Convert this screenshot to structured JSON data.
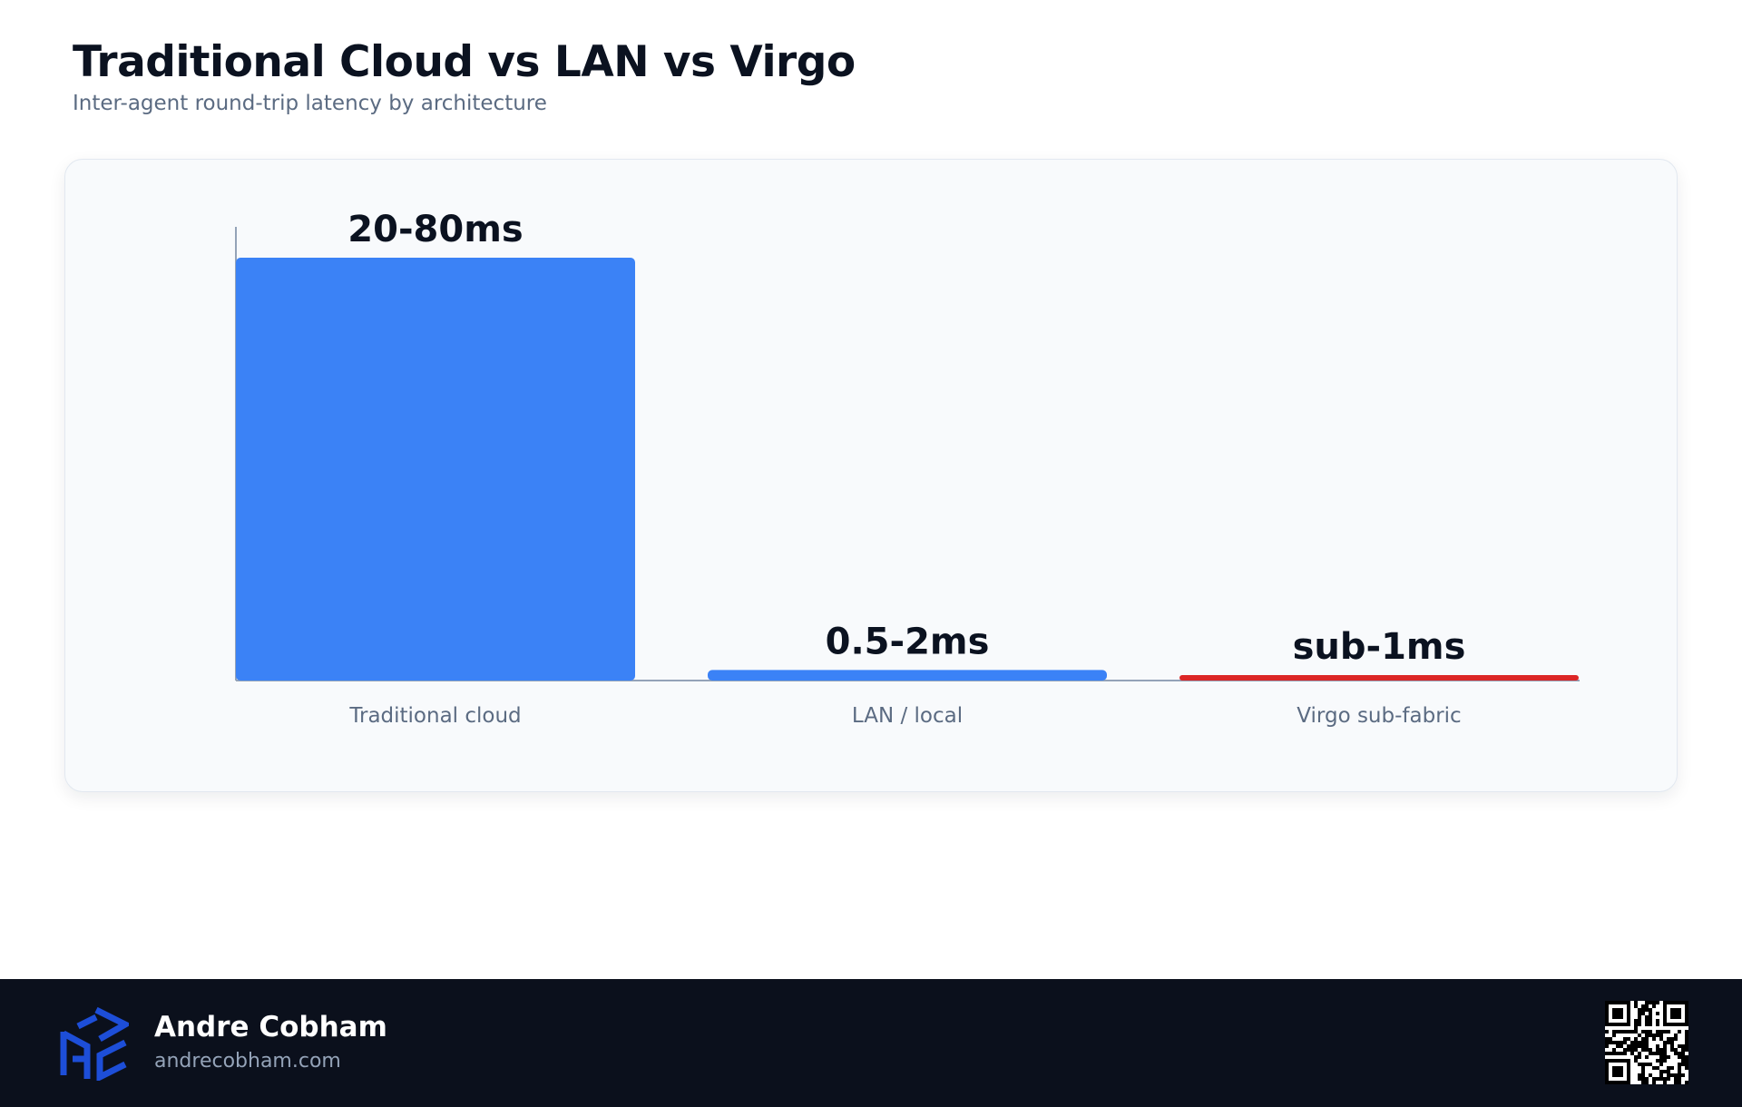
{
  "header": {
    "title": "Traditional Cloud vs LAN vs Virgo",
    "subtitle": "Inter-agent round-trip latency by architecture"
  },
  "chart_data": {
    "type": "bar",
    "categories": [
      "Traditional cloud",
      "LAN / local",
      "Virgo sub-fabric"
    ],
    "values": [
      80,
      2,
      0.5
    ],
    "value_labels": [
      "20-80ms",
      "0.5-2ms",
      "sub-1ms"
    ],
    "colors": [
      "#3b82f6",
      "#3b82f6",
      "#dc2626"
    ],
    "ylim": [
      0,
      80
    ],
    "grid": false,
    "legend": "none",
    "unit": "ms"
  },
  "footer": {
    "author_name": "Andre Cobham",
    "author_site": "andrecobham.com"
  },
  "colors": {
    "accent": "#3b82f6",
    "highlight": "#dc2626",
    "footer_bg": "#0b101c",
    "card_bg": "#f8fafc"
  },
  "icons": {
    "logo": "ac-cube-logo-icon",
    "qr": "qr-code-icon"
  }
}
